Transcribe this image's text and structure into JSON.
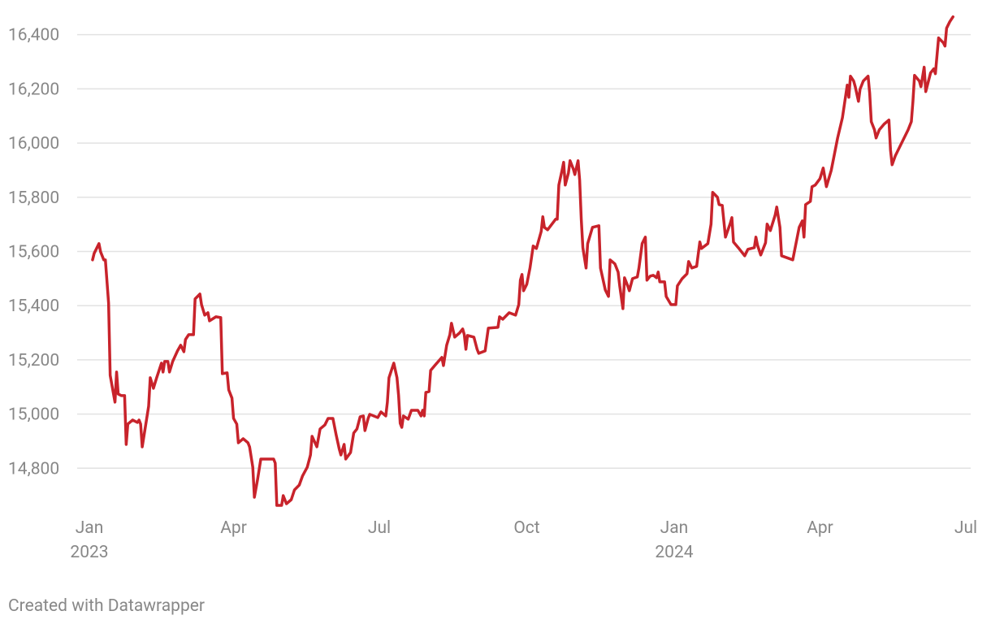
{
  "chart_data": {
    "type": "line",
    "credit": "Created with Datawrapper",
    "xlim": [
      "2023-01-01",
      "2024-07-01"
    ],
    "xticks": [
      {
        "value": "2023-01-01",
        "label": "Jan",
        "sublabel": "2023"
      },
      {
        "value": "2023-04-01",
        "label": "Apr"
      },
      {
        "value": "2023-07-01",
        "label": "Jul"
      },
      {
        "value": "2023-10-01",
        "label": "Oct"
      },
      {
        "value": "2024-01-01",
        "label": "Jan",
        "sublabel": "2024"
      },
      {
        "value": "2024-04-01",
        "label": "Apr"
      },
      {
        "value": "2024-07-01",
        "label": "Jul"
      }
    ],
    "ylim": [
      14660,
      16480
    ],
    "yticks": [
      {
        "value": 14800,
        "label": "14,800"
      },
      {
        "value": 15000,
        "label": "15,000"
      },
      {
        "value": 15200,
        "label": "15,200"
      },
      {
        "value": 15400,
        "label": "15,400"
      },
      {
        "value": 15600,
        "label": "15,600"
      },
      {
        "value": 15800,
        "label": "15,800"
      },
      {
        "value": 16000,
        "label": "16,000"
      },
      {
        "value": 16200,
        "label": "16,200"
      },
      {
        "value": 16400,
        "label": "16,400"
      }
    ],
    "grid": true,
    "color": "#c8232b",
    "x": [
      "2023-01-03",
      "2023-01-04",
      "2023-01-07",
      "2023-01-08",
      "2023-01-10",
      "2023-01-11",
      "2023-01-13",
      "2023-01-14",
      "2023-01-17",
      "2023-01-18",
      "2023-01-19",
      "2023-01-21",
      "2023-01-23",
      "2023-01-24",
      "2023-01-25",
      "2023-01-28",
      "2023-01-31",
      "2023-02-01",
      "2023-02-02",
      "2023-02-03",
      "2023-02-05",
      "2023-02-07",
      "2023-02-08",
      "2023-02-10",
      "2023-02-12",
      "2023-02-15",
      "2023-02-16",
      "2023-02-17",
      "2023-02-19",
      "2023-02-20",
      "2023-02-22",
      "2023-02-25",
      "2023-02-27",
      "2023-03-01",
      "2023-03-02",
      "2023-03-04",
      "2023-03-07",
      "2023-03-08",
      "2023-03-11",
      "2023-03-12",
      "2023-03-14",
      "2023-03-16",
      "2023-03-17",
      "2023-03-21",
      "2023-03-24",
      "2023-03-25",
      "2023-03-28",
      "2023-03-29",
      "2023-03-31",
      "2023-04-01",
      "2023-04-03",
      "2023-04-04",
      "2023-04-07",
      "2023-04-10",
      "2023-04-11",
      "2023-04-13",
      "2023-04-14",
      "2023-04-16",
      "2023-04-18",
      "2023-04-26",
      "2023-04-27",
      "2023-04-28",
      "2023-05-01",
      "2023-05-02",
      "2023-05-04",
      "2023-05-07",
      "2023-05-09",
      "2023-05-12",
      "2023-05-14",
      "2023-05-17",
      "2023-05-19",
      "2023-05-20",
      "2023-05-23",
      "2023-05-25",
      "2023-05-28",
      "2023-05-30",
      "2023-06-02",
      "2023-06-04",
      "2023-06-06",
      "2023-06-07",
      "2023-06-09",
      "2023-06-10",
      "2023-06-13",
      "2023-06-15",
      "2023-06-17",
      "2023-06-19",
      "2023-06-21",
      "2023-06-22",
      "2023-06-24",
      "2023-06-25",
      "2023-06-30",
      "2023-07-02",
      "2023-07-05",
      "2023-07-06",
      "2023-07-07",
      "2023-07-10",
      "2023-07-12",
      "2023-07-13",
      "2023-07-14",
      "2023-07-15",
      "2023-07-16",
      "2023-07-19",
      "2023-07-21",
      "2023-07-25",
      "2023-07-27",
      "2023-07-28",
      "2023-07-29",
      "2023-07-30",
      "2023-08-01",
      "2023-08-02",
      "2023-08-05",
      "2023-08-09",
      "2023-08-10",
      "2023-08-12",
      "2023-08-14",
      "2023-08-15",
      "2023-08-17",
      "2023-08-20",
      "2023-08-22",
      "2023-08-23",
      "2023-08-24",
      "2023-08-25",
      "2023-08-29",
      "2023-08-31",
      "2023-09-01",
      "2023-09-05",
      "2023-09-07",
      "2023-09-13",
      "2023-09-14",
      "2023-09-16",
      "2023-09-20",
      "2023-09-24",
      "2023-09-26",
      "2023-09-27",
      "2023-09-28",
      "2023-09-29",
      "2023-10-01",
      "2023-10-03",
      "2023-10-05",
      "2023-10-07",
      "2023-10-10",
      "2023-10-11",
      "2023-10-12",
      "2023-10-14",
      "2023-10-19",
      "2023-10-20",
      "2023-10-21",
      "2023-10-23",
      "2023-10-24",
      "2023-10-25",
      "2023-10-27",
      "2023-10-28",
      "2023-10-30",
      "2023-10-31",
      "2023-11-02",
      "2023-11-03",
      "2023-11-04",
      "2023-11-05",
      "2023-11-07",
      "2023-11-08",
      "2023-11-11",
      "2023-11-15",
      "2023-11-16",
      "2023-11-18",
      "2023-11-19",
      "2023-11-21",
      "2023-11-22",
      "2023-11-25",
      "2023-11-27",
      "2023-11-28",
      "2023-11-30",
      "2023-12-01",
      "2023-12-03",
      "2023-12-04",
      "2023-12-06",
      "2023-12-09",
      "2023-12-10",
      "2023-12-12",
      "2023-12-14",
      "2023-12-15",
      "2023-12-17",
      "2023-12-19",
      "2023-12-21",
      "2023-12-22",
      "2023-12-23",
      "2023-12-26",
      "2023-12-27",
      "2023-12-30",
      "2024-01-02",
      "2024-01-03",
      "2024-01-06",
      "2024-01-09",
      "2024-01-10",
      "2024-01-12",
      "2024-01-15",
      "2024-01-17",
      "2024-01-18",
      "2024-01-22",
      "2024-01-24",
      "2024-01-25",
      "2024-01-28",
      "2024-01-29",
      "2024-01-31",
      "2024-02-02",
      "2024-02-05",
      "2024-02-06",
      "2024-02-07",
      "2024-02-10",
      "2024-02-14",
      "2024-02-16",
      "2024-02-20",
      "2024-02-21",
      "2024-02-22",
      "2024-02-24",
      "2024-02-27",
      "2024-02-28",
      "2024-03-01",
      "2024-03-04",
      "2024-03-05",
      "2024-03-07",
      "2024-03-08",
      "2024-03-15",
      "2024-03-16",
      "2024-03-19",
      "2024-03-21",
      "2024-03-22",
      "2024-03-23",
      "2024-03-26",
      "2024-03-27",
      "2024-03-29",
      "2024-04-01",
      "2024-04-03",
      "2024-04-05",
      "2024-04-08",
      "2024-04-10",
      "2024-04-12",
      "2024-04-15",
      "2024-04-18",
      "2024-04-19",
      "2024-04-20",
      "2024-04-22",
      "2024-04-23",
      "2024-04-25",
      "2024-04-26",
      "2024-04-28",
      "2024-05-01",
      "2024-05-02",
      "2024-05-03",
      "2024-05-05",
      "2024-05-06",
      "2024-05-08",
      "2024-05-11",
      "2024-05-14",
      "2024-05-15",
      "2024-05-16",
      "2024-05-18",
      "2024-05-21",
      "2024-05-26",
      "2024-05-28",
      "2024-05-29",
      "2024-05-30",
      "2024-06-02",
      "2024-06-03",
      "2024-06-05",
      "2024-06-06",
      "2024-06-09",
      "2024-06-11",
      "2024-06-12",
      "2024-06-14",
      "2024-06-17",
      "2024-06-18",
      "2024-06-19",
      "2024-06-21",
      "2024-06-23"
    ],
    "values": [
      15569,
      15593,
      15629,
      15599,
      15569,
      15569,
      15410,
      15143,
      15044,
      15155,
      15074,
      15068,
      15068,
      14888,
      14963,
      14978,
      14969,
      14978,
      14963,
      14879,
      14954,
      15029,
      15134,
      15095,
      15134,
      15188,
      15155,
      15194,
      15194,
      15155,
      15194,
      15233,
      15254,
      15230,
      15275,
      15293,
      15293,
      15425,
      15443,
      15404,
      15365,
      15374,
      15344,
      15359,
      15356,
      15149,
      15152,
      15089,
      15059,
      14984,
      14963,
      14894,
      14909,
      14894,
      14879,
      14804,
      14693,
      14759,
      14834,
      14834,
      14819,
      14663,
      14663,
      14699,
      14669,
      14684,
      14720,
      14738,
      14771,
      14804,
      14849,
      14918,
      14879,
      14945,
      14960,
      14984,
      14984,
      14924,
      14870,
      14849,
      14888,
      14834,
      14858,
      14930,
      14945,
      14990,
      14993,
      14939,
      14984,
      14999,
      14987,
      15008,
      14993,
      15044,
      15134,
      15188,
      15134,
      15068,
      14966,
      14951,
      14993,
      14981,
      15014,
      15014,
      14993,
      15014,
      14993,
      15080,
      15083,
      15161,
      15182,
      15209,
      15179,
      15254,
      15293,
      15335,
      15284,
      15299,
      15314,
      15293,
      15239,
      15290,
      15284,
      15239,
      15224,
      15233,
      15317,
      15320,
      15359,
      15350,
      15374,
      15365,
      15404,
      15494,
      15515,
      15455,
      15479,
      15539,
      15620,
      15611,
      15674,
      15728,
      15689,
      15680,
      15719,
      15719,
      15845,
      15899,
      15929,
      15845,
      15890,
      15935,
      15905,
      15884,
      15935,
      15863,
      15719,
      15614,
      15539,
      15629,
      15689,
      15695,
      15539,
      15485,
      15458,
      15434,
      15569,
      15554,
      15524,
      15473,
      15389,
      15503,
      15473,
      15455,
      15500,
      15506,
      15539,
      15629,
      15653,
      15494,
      15509,
      15512,
      15503,
      15524,
      15488,
      15488,
      15434,
      15404,
      15404,
      15473,
      15500,
      15518,
      15563,
      15539,
      15545,
      15635,
      15611,
      15629,
      15701,
      15818,
      15800,
      15773,
      15770,
      15653,
      15704,
      15725,
      15635,
      15614,
      15584,
      15608,
      15614,
      15653,
      15623,
      15587,
      15632,
      15701,
      15677,
      15734,
      15764,
      15689,
      15584,
      15569,
      15599,
      15689,
      15713,
      15653,
      15773,
      15785,
      15839,
      15845,
      15869,
      15908,
      15839,
      15899,
      15959,
      16019,
      16094,
      16214,
      16169,
      16247,
      16229,
      16208,
      16154,
      16199,
      16229,
      16247,
      16184,
      16079,
      16049,
      16019,
      16049,
      16070,
      16085,
      15974,
      15920,
      15953,
      15989,
      16049,
      16079,
      16154,
      16250,
      16229,
      16208,
      16280,
      16190,
      16259,
      16274,
      16256,
      16388,
      16370,
      16358,
      16424,
      16448,
      16466
    ]
  }
}
